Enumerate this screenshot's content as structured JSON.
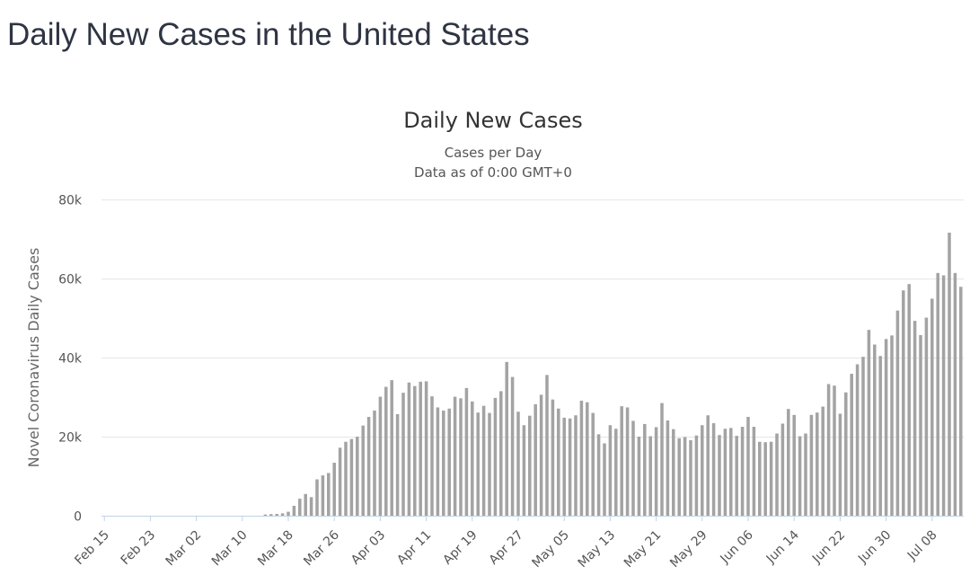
{
  "page": {
    "title": "Daily New Cases in the United States"
  },
  "chart_data": {
    "type": "bar",
    "title": "Daily New Cases",
    "subtitle": "Cases per Day",
    "subtitle2": "Data as of 0:00 GMT+0",
    "ylabel": "Novel Coronavirus Daily Cases",
    "xlabel": "",
    "ylim": [
      0,
      80000
    ],
    "y_ticks": [
      {
        "value": 0,
        "label": "0"
      },
      {
        "value": 20000,
        "label": "20k"
      },
      {
        "value": 40000,
        "label": "40k"
      },
      {
        "value": 60000,
        "label": "60k"
      },
      {
        "value": 80000,
        "label": "80k"
      }
    ],
    "x_ticks": [
      {
        "index": 0,
        "label": "Feb 15"
      },
      {
        "index": 8,
        "label": "Feb 23"
      },
      {
        "index": 16,
        "label": "Mar 02"
      },
      {
        "index": 24,
        "label": "Mar 10"
      },
      {
        "index": 32,
        "label": "Mar 18"
      },
      {
        "index": 40,
        "label": "Mar 26"
      },
      {
        "index": 48,
        "label": "Apr 03"
      },
      {
        "index": 56,
        "label": "Apr 11"
      },
      {
        "index": 64,
        "label": "Apr 19"
      },
      {
        "index": 72,
        "label": "Apr 27"
      },
      {
        "index": 80,
        "label": "May 05"
      },
      {
        "index": 88,
        "label": "May 13"
      },
      {
        "index": 96,
        "label": "May 21"
      },
      {
        "index": 104,
        "label": "May 29"
      },
      {
        "index": 112,
        "label": "Jun 06"
      },
      {
        "index": 120,
        "label": "Jun 14"
      },
      {
        "index": 128,
        "label": "Jun 22"
      },
      {
        "index": 136,
        "label": "Jun 30"
      },
      {
        "index": 144,
        "label": "Jul 08"
      }
    ],
    "grid": true,
    "bar_color": "#a3a3a3",
    "series": [
      {
        "name": "Daily Cases",
        "start_date": "Feb 15",
        "values": [
          0,
          0,
          0,
          0,
          0,
          0,
          0,
          0,
          0,
          0,
          0,
          0,
          0,
          0,
          0,
          0,
          0,
          0,
          0,
          0,
          0,
          0,
          0,
          0,
          0,
          0,
          0,
          0,
          300,
          400,
          450,
          600,
          1000,
          2500,
          4300,
          5500,
          4700,
          9200,
          10200,
          10800,
          13400,
          17200,
          18700,
          19400,
          20000,
          22800,
          25000,
          26600,
          30100,
          32600,
          34300,
          25700,
          31100,
          33700,
          32800,
          33900,
          34000,
          30200,
          27400,
          26600,
          27100,
          30100,
          29700,
          32300,
          28900,
          26100,
          27800,
          26000,
          29800,
          31500,
          38900,
          35100,
          26300,
          22900,
          25300,
          28200,
          30600,
          35600,
          29400,
          27100,
          24800,
          24600,
          25400,
          29100,
          28700,
          26000,
          20600,
          18300,
          22900,
          22000,
          27700,
          27400,
          24000,
          20000,
          23200,
          20100,
          22400,
          28500,
          24100,
          21900,
          19600,
          19900,
          19100,
          20300,
          22900,
          25400,
          23400,
          20400,
          22000,
          22200,
          20200,
          22500,
          25000,
          22500,
          18700,
          18600,
          18700,
          20800,
          23300,
          27000,
          25500,
          20100,
          20800,
          25500,
          26100,
          27600,
          33300,
          32900,
          25800,
          31200,
          35900,
          38300,
          40200,
          47000,
          43300,
          40400,
          44700,
          45600,
          51900,
          57000,
          58600,
          49300,
          45700,
          50100,
          54900,
          61400,
          60800,
          71600,
          61400,
          57900
        ]
      }
    ]
  }
}
